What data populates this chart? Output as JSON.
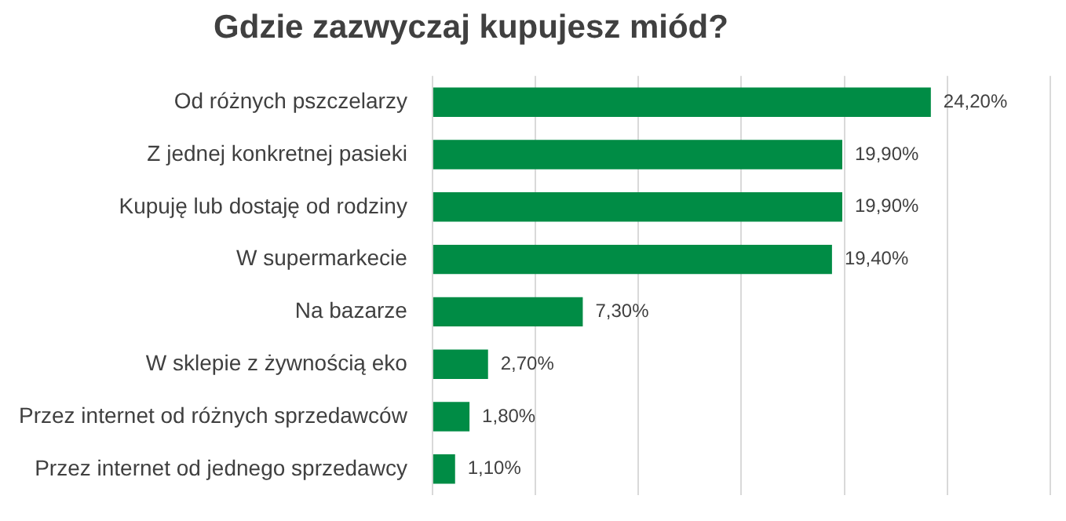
{
  "chart_data": {
    "type": "bar",
    "orientation": "horizontal",
    "title": "Gdzie zazwyczaj kupujesz miód?",
    "categories": [
      "Od różnych pszczelarzy",
      "Z jednej konkretnej pasieki",
      "Kupuję lub dostaję od rodziny",
      "W supermarkecie",
      "Na bazarze",
      "W sklepie z żywnością eko",
      "Przez internet od różnych sprzedawców",
      "Przez internet od jednego sprzedawcy"
    ],
    "values": [
      24.2,
      19.9,
      19.9,
      19.4,
      7.3,
      2.7,
      1.8,
      1.1
    ],
    "value_labels": [
      "24,20%",
      "19,90%",
      "19,90%",
      "19,40%",
      "7,30%",
      "2,70%",
      "1,80%",
      "1,10%"
    ],
    "color": "#008c45",
    "xlim": [
      0,
      30
    ],
    "xticks": [
      {
        "value": 0,
        "label": null
      },
      {
        "value": 5,
        "label": null
      },
      {
        "value": 10,
        "label": null
      },
      {
        "value": 15,
        "label": null
      },
      {
        "value": 20,
        "label": null
      },
      {
        "value": 25,
        "label": null
      },
      {
        "value": 30,
        "label": null
      }
    ],
    "tick_labels": "y",
    "grid": "x",
    "legend": false
  }
}
